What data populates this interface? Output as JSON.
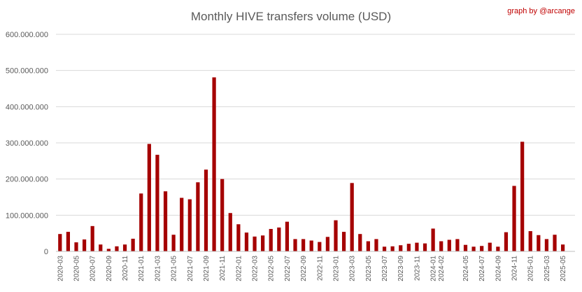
{
  "chart_data": {
    "type": "bar",
    "title": "Monthly HIVE transfers volume (USD)",
    "credit": "graph by @arcange",
    "xlabel": "",
    "ylabel": "",
    "ylim": [
      0,
      600000000
    ],
    "yticks": [
      0,
      100000000,
      200000000,
      300000000,
      400000000,
      500000000,
      600000000
    ],
    "ytick_labels": [
      "0",
      "100.000.000",
      "200.000.000",
      "300.000.000",
      "400.000.000",
      "500.000.000",
      "600.000.000"
    ],
    "grid": true,
    "bar_color": "#a50000",
    "categories": [
      "2020-03",
      "2020-04",
      "2020-05",
      "2020-06",
      "2020-07",
      "2020-08",
      "2020-09",
      "2020-10",
      "2020-11",
      "2020-12",
      "2021-01",
      "2021-02",
      "2021-03",
      "2021-04",
      "2021-05",
      "2021-06",
      "2021-07",
      "2021-08",
      "2021-09",
      "2021-10",
      "2021-11",
      "2021-12",
      "2022-01",
      "2022-02",
      "2022-03",
      "2022-04",
      "2022-05",
      "2022-06",
      "2022-07",
      "2022-08",
      "2022-09",
      "2022-10",
      "2022-11",
      "2022-12",
      "2023-01",
      "2023-02",
      "2023-03",
      "2023-04",
      "2023-05",
      "2023-06",
      "2023-07",
      "2023-08",
      "2023-09",
      "2023-10",
      "2023-11",
      "2023-12",
      "2024-01",
      "2024-02",
      "2024-03",
      "2024-04",
      "2024-05",
      "2024-06",
      "2024-07",
      "2024-08",
      "2024-09",
      "2024-10",
      "2024-11",
      "2024-12",
      "2025-01",
      "2025-02",
      "2025-03",
      "2025-04",
      "2025-05",
      "2025-06"
    ],
    "x_tick_labels": [
      "2020-03",
      "2020-05",
      "2020-07",
      "2020-09",
      "2020-11",
      "2021-01",
      "2021-03",
      "2021-05",
      "2021-07",
      "2021-09",
      "2021-11",
      "2022-01",
      "2022-03",
      "2022-05",
      "2022-07",
      "2022-09",
      "2022-11",
      "2023-01",
      "2023-03",
      "2023-05",
      "2023-07",
      "2023-09",
      "2023-11",
      "2024-01",
      "2024-02",
      "2024-05",
      "2024-07",
      "2024-09",
      "2024-11",
      "2025-01",
      "2025-03",
      "2025-05"
    ],
    "values": [
      48000000,
      54000000,
      25000000,
      33000000,
      70000000,
      19000000,
      7000000,
      14000000,
      19000000,
      35000000,
      160000000,
      297000000,
      267000000,
      166000000,
      46000000,
      148000000,
      144000000,
      191000000,
      226000000,
      481000000,
      200000000,
      106000000,
      75000000,
      52000000,
      41000000,
      44000000,
      62000000,
      66000000,
      82000000,
      34000000,
      34000000,
      30000000,
      26000000,
      40000000,
      86000000,
      54000000,
      189000000,
      48000000,
      28000000,
      34000000,
      13000000,
      14000000,
      17000000,
      21000000,
      24000000,
      22000000,
      63000000,
      28000000,
      32000000,
      34000000,
      18000000,
      13000000,
      15000000,
      24000000,
      13000000,
      53000000,
      181000000,
      303000000,
      56000000,
      45000000,
      34000000,
      46000000,
      19000000,
      0
    ]
  }
}
